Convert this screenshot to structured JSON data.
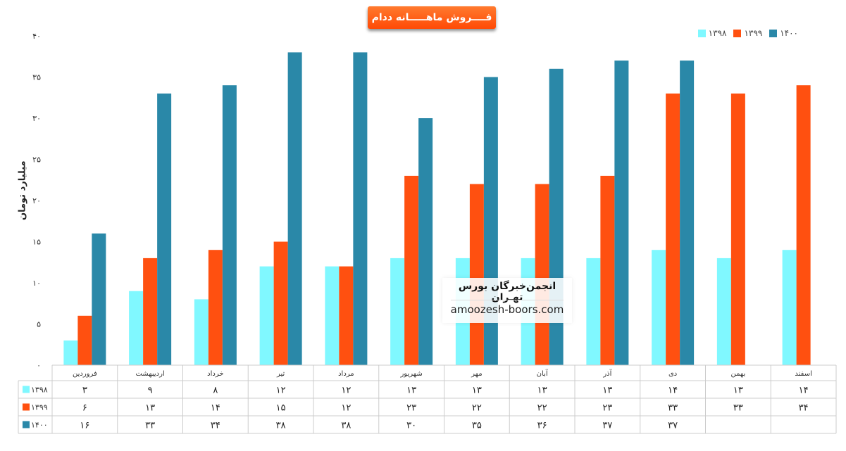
{
  "chart_data": {
    "type": "bar",
    "title": "فــــروش ماهـــــانه ددام",
    "ylabel": "میلیارد تومان",
    "xlabel": "",
    "ylim": [
      0,
      40
    ],
    "yticks": [
      0,
      5,
      10,
      15,
      20,
      25,
      30,
      35,
      40
    ],
    "ytick_labels": [
      "۰",
      "۵",
      "۱۰",
      "۱۵",
      "۲۰",
      "۲۵",
      "۳۰",
      "۳۵",
      "۴۰"
    ],
    "grid": false,
    "legend_position": "top-right",
    "categories": [
      "فروردین",
      "اردیبهشت",
      "خرداد",
      "تیر",
      "مرداد",
      "شهریور",
      "مهر",
      "آبان",
      "آذر",
      "دی",
      "بهمن",
      "اسفند"
    ],
    "series": [
      {
        "name": "۱۳۹۸",
        "color": "#80f8ff",
        "values": [
          3,
          9,
          8,
          12,
          12,
          13,
          13,
          13,
          13,
          14,
          13,
          14
        ],
        "labels": [
          "۳",
          "۹",
          "۸",
          "۱۲",
          "۱۲",
          "۱۳",
          "۱۳",
          "۱۳",
          "۱۳",
          "۱۴",
          "۱۳",
          "۱۴"
        ]
      },
      {
        "name": "۱۳۹۹",
        "color": "#ff5010",
        "values": [
          6,
          13,
          14,
          15,
          12,
          23,
          22,
          22,
          23,
          33,
          33,
          34
        ],
        "labels": [
          "۶",
          "۱۳",
          "۱۴",
          "۱۵",
          "۱۲",
          "۲۳",
          "۲۲",
          "۲۲",
          "۲۳",
          "۳۳",
          "۳۳",
          "۳۴"
        ]
      },
      {
        "name": "۱۴۰۰",
        "color": "#2a88a8",
        "values": [
          16,
          33,
          34,
          38,
          38,
          30,
          35,
          36,
          37,
          37,
          null,
          null
        ],
        "labels": [
          "۱۶",
          "۳۳",
          "۳۴",
          "۳۸",
          "۳۸",
          "۳۰",
          "۳۵",
          "۳۶",
          "۳۷",
          "۳۷",
          "",
          ""
        ]
      }
    ],
    "table_row_labels": [
      "۱۳۹۸",
      "۱۳۹۹",
      "۱۴۰۰"
    ]
  },
  "watermark": {
    "title": "انجمن‌خبرگان بورس تهـران",
    "url": "amoozesh-boors.com"
  }
}
